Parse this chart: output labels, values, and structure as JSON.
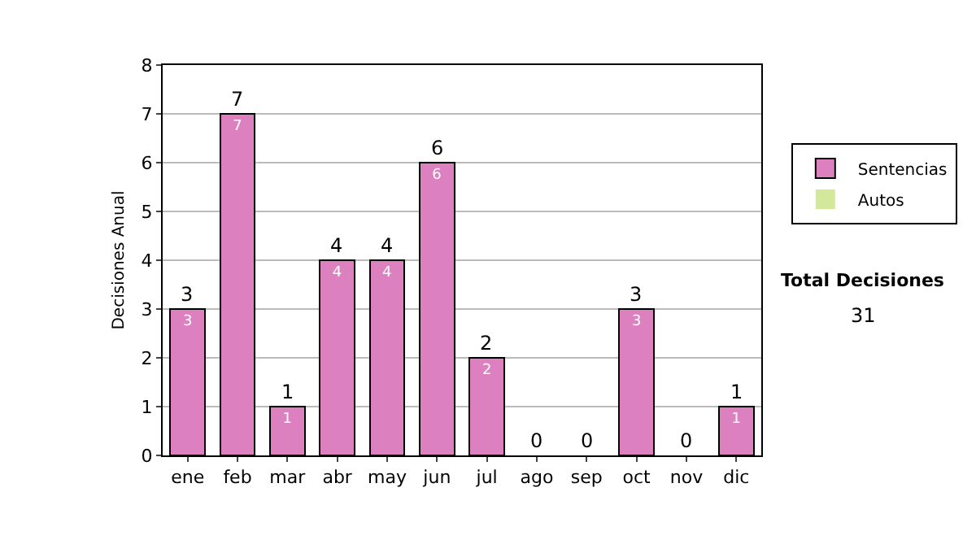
{
  "chart_data": {
    "type": "bar",
    "stacked": true,
    "ylabel": "Decisiones Anual",
    "categories": [
      "ene",
      "feb",
      "mar",
      "abr",
      "may",
      "jun",
      "jul",
      "ago",
      "sep",
      "oct",
      "nov",
      "dic"
    ],
    "series": [
      {
        "name": "Sentencias",
        "color": "#dd80c0",
        "values": [
          3,
          7,
          1,
          4,
          4,
          6,
          2,
          0,
          0,
          3,
          0,
          1
        ],
        "value_labels": [
          "3",
          "7",
          "1",
          "4",
          "4",
          "6",
          "2",
          null,
          null,
          "3",
          null,
          "1"
        ]
      },
      {
        "name": "Autos",
        "color": "#d4e89c",
        "values": [
          0,
          0,
          0,
          0,
          0,
          0,
          0,
          0,
          0,
          0,
          0,
          0
        ]
      }
    ],
    "totals": [
      "3",
      "7",
      "1",
      "4",
      "4",
      "6",
      "2",
      "0",
      "0",
      "3",
      "0",
      "1"
    ],
    "ylim": [
      0,
      8
    ],
    "yticks": [
      0,
      1,
      2,
      3,
      4,
      5,
      6,
      7,
      8
    ],
    "grid": "y",
    "legend": "right",
    "annotations": [
      "Total Decisiones",
      "31"
    ]
  }
}
